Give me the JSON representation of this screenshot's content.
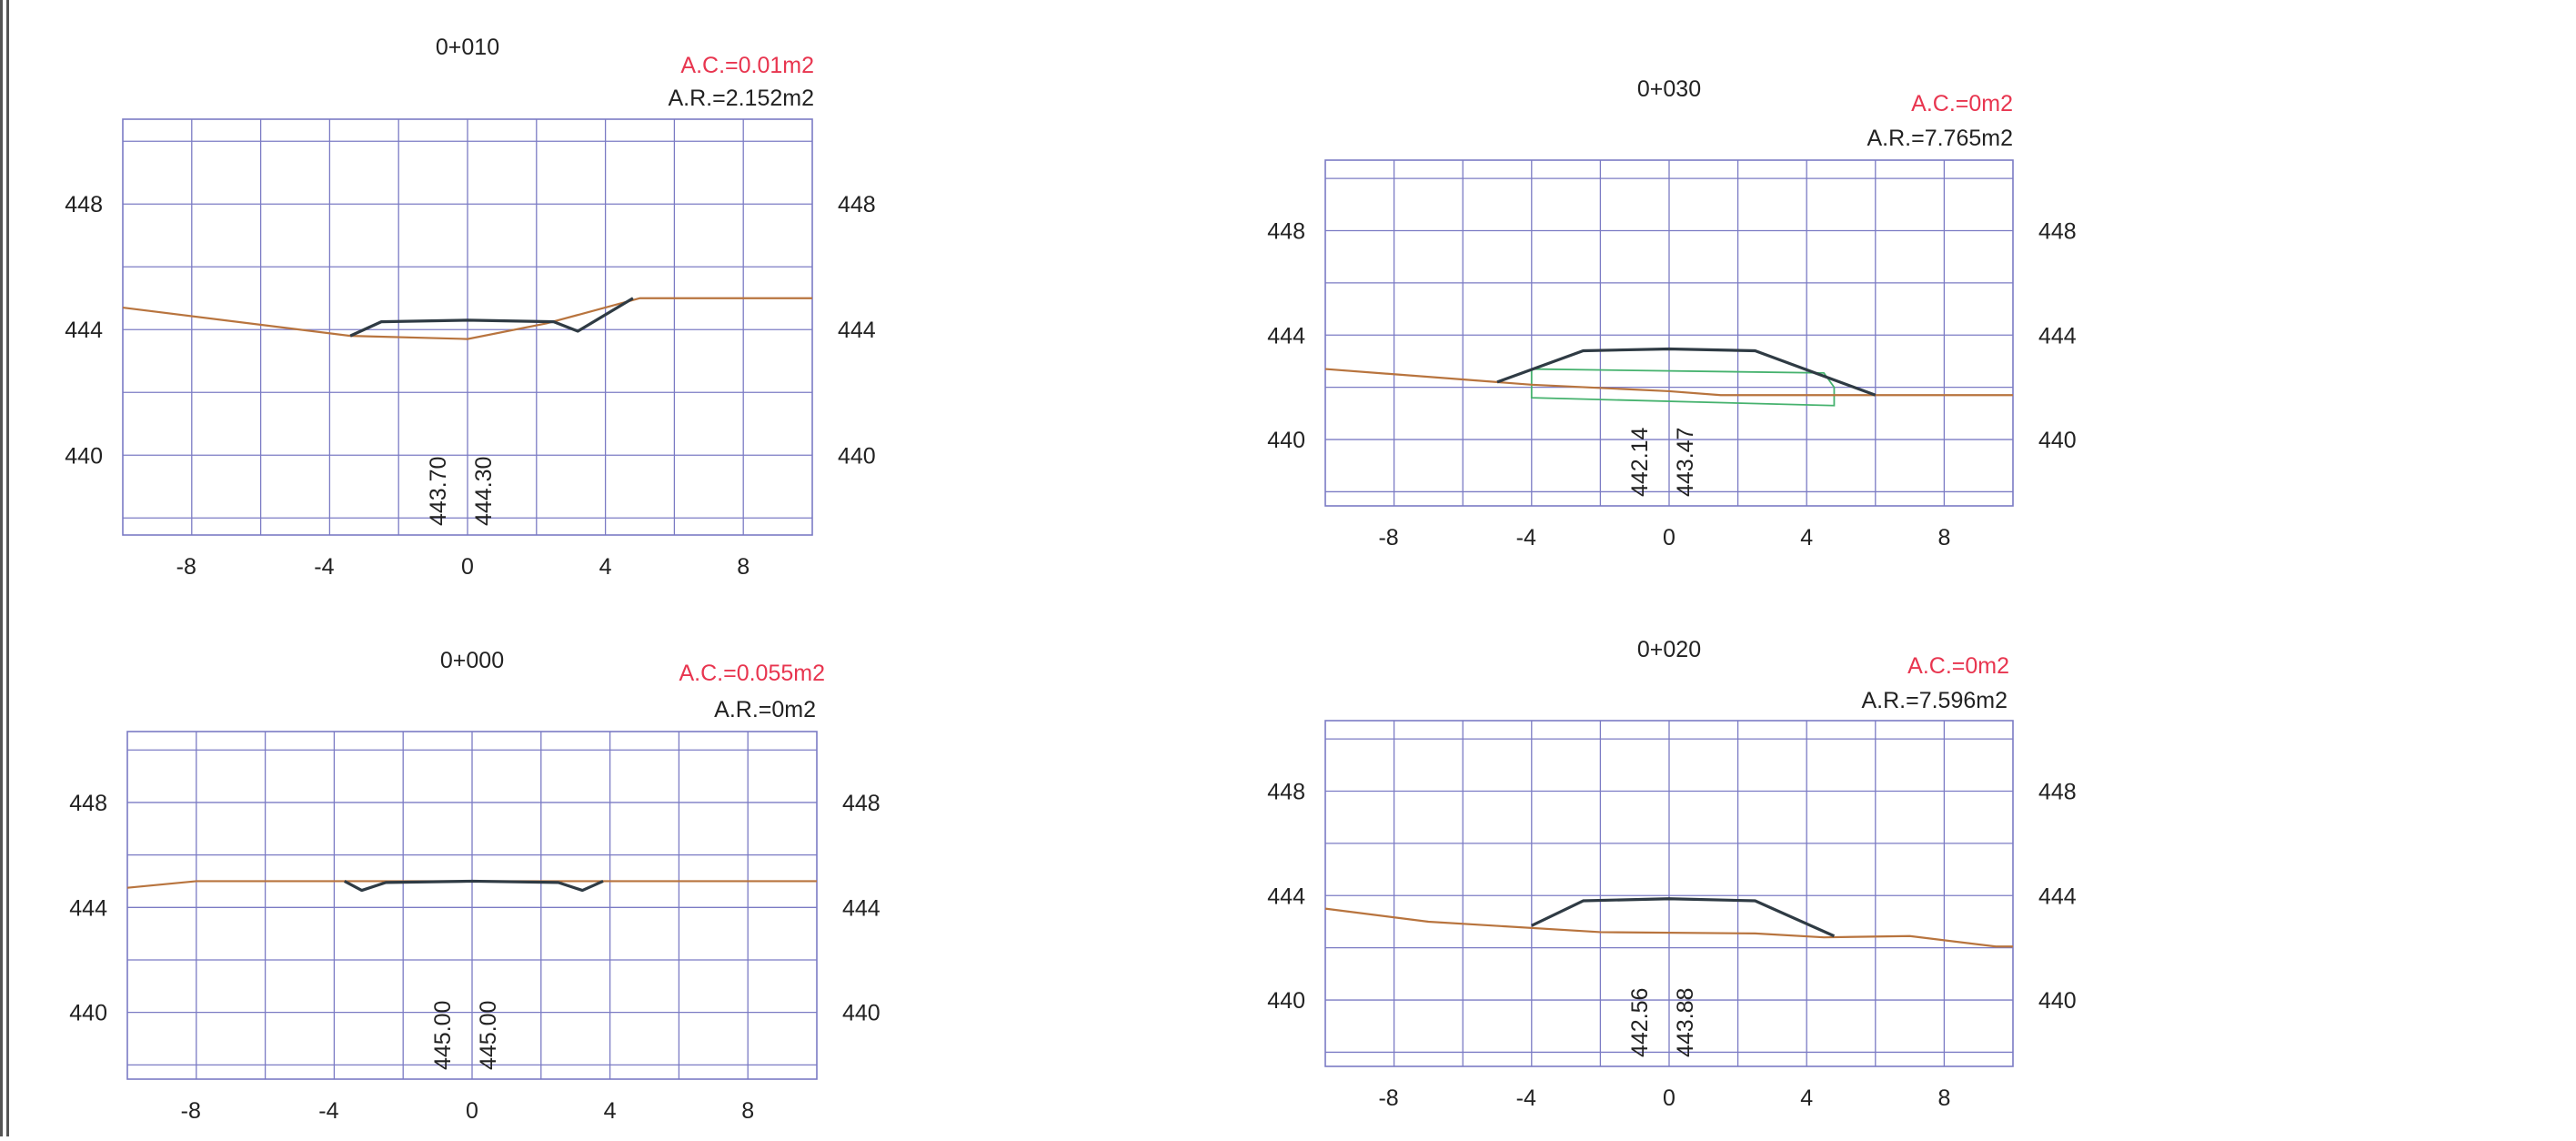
{
  "colors": {
    "grid": "#7b7bc4",
    "terrain": "#b8743e",
    "road": "#2f3b44",
    "pipe": "#46b26e",
    "cut": "#e8354f",
    "text": "#222222"
  },
  "sections": [
    {
      "station": "0+010",
      "area_cut": "A.C.=0.01m2",
      "area_fill": "A.R.=2.152m2",
      "y_ticks": [
        "448",
        "444",
        "440"
      ],
      "x_ticks": [
        "-8",
        "-4",
        "0",
        "4",
        "8"
      ],
      "elevations": [
        "443.70",
        "444.30"
      ],
      "terrain": [
        [
          -10,
          444.7
        ],
        [
          -3.4,
          443.8
        ],
        [
          0,
          443.7
        ],
        [
          2.3,
          444.2
        ],
        [
          5,
          445
        ],
        [
          10,
          445
        ]
      ],
      "road": [
        [
          -3.4,
          443.8
        ],
        [
          -2.5,
          444.25
        ],
        [
          0,
          444.3
        ],
        [
          2.5,
          444.25
        ],
        [
          3.2,
          443.95
        ],
        [
          4.8,
          445
        ]
      ],
      "pipe": []
    },
    {
      "station": "0+030",
      "area_cut": "A.C.=0m2",
      "area_fill": "A.R.=7.765m2",
      "y_ticks": [
        "448",
        "444",
        "440"
      ],
      "x_ticks": [
        "-8",
        "-4",
        "0",
        "4",
        "8"
      ],
      "elevations": [
        "442.14",
        "443.47"
      ],
      "terrain": [
        [
          -10,
          442.7
        ],
        [
          -4,
          442.1
        ],
        [
          0,
          441.85
        ],
        [
          1.5,
          441.7
        ],
        [
          4.8,
          441.7
        ],
        [
          6,
          441.7
        ],
        [
          10,
          441.7
        ]
      ],
      "road": [
        [
          -5,
          442.2
        ],
        [
          -2.5,
          443.4
        ],
        [
          0,
          443.47
        ],
        [
          2.5,
          443.4
        ],
        [
          6,
          441.7
        ]
      ],
      "pipe": [
        [
          [
            -4,
            442.7
          ],
          [
            4.5,
            442.55
          ],
          [
            4.8,
            442.0
          ],
          [
            4.8,
            441.3
          ],
          [
            -4,
            441.6
          ],
          [
            -4,
            442.7
          ]
        ]
      ]
    },
    {
      "station": "0+000",
      "area_cut": "A.C.=0.055m2",
      "area_fill": "A.R.=0m2",
      "y_ticks": [
        "448",
        "444",
        "440"
      ],
      "x_ticks": [
        "-8",
        "-4",
        "0",
        "4",
        "8"
      ],
      "elevations": [
        "445.00",
        "445.00"
      ],
      "terrain": [
        [
          -10,
          444.75
        ],
        [
          -8,
          445
        ],
        [
          10,
          445
        ]
      ],
      "road": [
        [
          -3.7,
          445
        ],
        [
          -3.2,
          444.65
        ],
        [
          -2.5,
          444.95
        ],
        [
          0,
          445
        ],
        [
          2.5,
          444.95
        ],
        [
          3.2,
          444.65
        ],
        [
          3.8,
          445
        ]
      ],
      "pipe": []
    },
    {
      "station": "0+020",
      "area_cut": "A.C.=0m2",
      "area_fill": "A.R.=7.596m2",
      "y_ticks": [
        "448",
        "444",
        "440"
      ],
      "x_ticks": [
        "-8",
        "-4",
        "0",
        "4",
        "8"
      ],
      "elevations": [
        "442.56",
        "443.88"
      ],
      "terrain": [
        [
          -10,
          443.5
        ],
        [
          -7,
          443.0
        ],
        [
          -2,
          442.6
        ],
        [
          2.5,
          442.55
        ],
        [
          4.5,
          442.4
        ],
        [
          7,
          442.45
        ],
        [
          9.5,
          442.05
        ],
        [
          10,
          442.05
        ]
      ],
      "road": [
        [
          -4,
          442.85
        ],
        [
          -2.5,
          443.8
        ],
        [
          0,
          443.88
        ],
        [
          2.5,
          443.8
        ],
        [
          4.8,
          442.45
        ]
      ],
      "pipe": []
    }
  ]
}
